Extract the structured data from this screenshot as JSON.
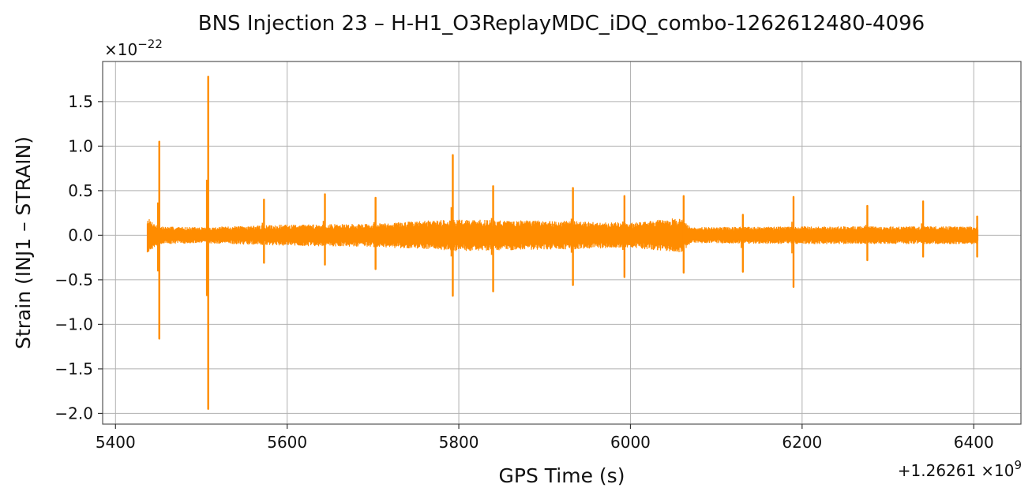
{
  "chart_data": {
    "type": "line",
    "title": "BNS Injection 23 – H-H1_O3ReplayMDC_iDQ_combo-1262612480-4096",
    "xlabel": "GPS Time (s)",
    "ylabel": "Strain (INJ1 – STRAIN)",
    "x_offset_label_prefix": "+1.26261",
    "x_offset_label_power": "×10",
    "x_offset_label_exp": "9",
    "y_scale_label_prefix": "×10",
    "y_scale_label_exp": "−22",
    "x_ticks": [
      5400,
      5600,
      5800,
      6000,
      6200,
      6400
    ],
    "x_tick_labels": [
      "5400",
      "5600",
      "5800",
      "6000",
      "6200",
      "6400"
    ],
    "y_ticks": [
      -2.0,
      -1.5,
      -1.0,
      -0.5,
      0.0,
      0.5,
      1.0,
      1.5
    ],
    "y_tick_labels": [
      "−2.0",
      "−1.5",
      "−1.0",
      "−0.5",
      "0.0",
      "0.5",
      "1.0",
      "1.5"
    ],
    "xlim": [
      5385,
      6455
    ],
    "ylim": [
      -2.12,
      1.95
    ],
    "grid": true,
    "color": "#ff8c00",
    "x_range": [
      5437,
      6405
    ],
    "noise_envelope": [
      {
        "x": 5437,
        "amp": 0.2
      },
      {
        "x": 5450,
        "amp": 0.1
      },
      {
        "x": 5500,
        "amp": 0.09
      },
      {
        "x": 5600,
        "amp": 0.12
      },
      {
        "x": 5700,
        "amp": 0.13
      },
      {
        "x": 5790,
        "amp": 0.18
      },
      {
        "x": 5850,
        "amp": 0.17
      },
      {
        "x": 5930,
        "amp": 0.16
      },
      {
        "x": 6000,
        "amp": 0.14
      },
      {
        "x": 6060,
        "amp": 0.2
      },
      {
        "x": 6070,
        "amp": 0.09
      },
      {
        "x": 6200,
        "amp": 0.1
      },
      {
        "x": 6300,
        "amp": 0.1
      },
      {
        "x": 6405,
        "amp": 0.1
      }
    ],
    "spikes": [
      {
        "x": 5451,
        "max": 1.05,
        "min": -1.16
      },
      {
        "x": 5508,
        "max": 1.78,
        "min": -1.95
      },
      {
        "x": 5573,
        "max": 0.4,
        "min": -0.31
      },
      {
        "x": 5644,
        "max": 0.46,
        "min": -0.33
      },
      {
        "x": 5703,
        "max": 0.42,
        "min": -0.38
      },
      {
        "x": 5793,
        "max": 0.9,
        "min": -0.68
      },
      {
        "x": 5840,
        "max": 0.55,
        "min": -0.63
      },
      {
        "x": 5933,
        "max": 0.53,
        "min": -0.56
      },
      {
        "x": 5993,
        "max": 0.44,
        "min": -0.47
      },
      {
        "x": 6062,
        "max": 0.44,
        "min": -0.42
      },
      {
        "x": 6131,
        "max": 0.23,
        "min": -0.41
      },
      {
        "x": 6190,
        "max": 0.43,
        "min": -0.58
      },
      {
        "x": 6276,
        "max": 0.33,
        "min": -0.28
      },
      {
        "x": 6341,
        "max": 0.38,
        "min": -0.24
      },
      {
        "x": 6404,
        "max": 0.21,
        "min": -0.24
      }
    ]
  }
}
